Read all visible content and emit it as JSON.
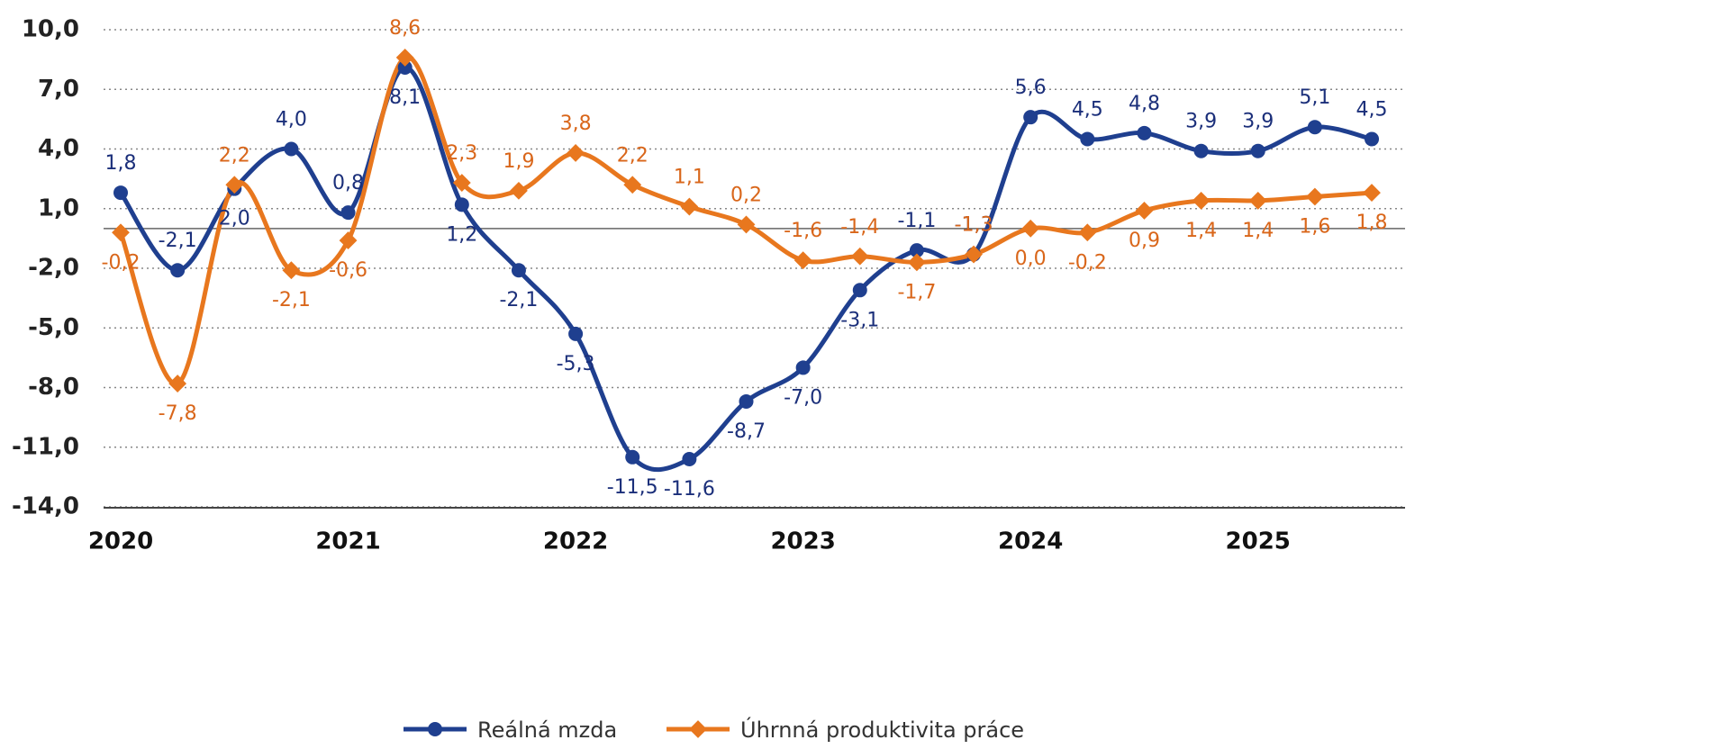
{
  "chart_data": {
    "type": "line",
    "categories": [
      "2020",
      null,
      null,
      null,
      "2021",
      null,
      null,
      null,
      "2022",
      null,
      null,
      null,
      "2023",
      null,
      null,
      null,
      "2024",
      null,
      null,
      null,
      "2025",
      null,
      null
    ],
    "series": [
      {
        "name": "Reálná mzda",
        "color": "#1f3f8f",
        "values": [
          1.8,
          -2.1,
          2.0,
          4.0,
          0.8,
          8.1,
          1.2,
          -2.1,
          -5.3,
          -11.5,
          -11.6,
          -8.7,
          -7.0,
          -3.1,
          -1.1,
          -1.3,
          5.6,
          4.5,
          4.8,
          3.9,
          3.9,
          5.1,
          4.5
        ],
        "value_labels": [
          "1,8",
          "-2,1",
          "2,0",
          "4,0",
          "0,8",
          "8,1",
          "1,2",
          "-2,1",
          "-5,3",
          "-11,5",
          "-11,6",
          "-8,7",
          "-7,0",
          "-3,1",
          "-1,1",
          "-1,3",
          "5,6",
          "4,5",
          "4,8",
          "3,9",
          "3,9",
          "5,1",
          "4,5"
        ]
      },
      {
        "name": "Úhrnná produktivita práce",
        "color": "#e8771e",
        "values": [
          -0.2,
          -7.8,
          2.2,
          -2.1,
          -0.6,
          8.6,
          2.3,
          1.9,
          3.8,
          2.2,
          1.1,
          0.2,
          -1.6,
          -1.4,
          -1.7,
          -1.3,
          0.0,
          -0.2,
          0.9,
          1.4,
          1.4,
          1.6,
          1.8
        ],
        "value_labels": [
          "-0,2",
          "-7,8",
          "2,2",
          "-2,1",
          "-0,6",
          "8,6",
          "2,3",
          "1,9",
          "3,8",
          "2,2",
          "1,1",
          "0,2",
          "-1,6",
          "-1,4",
          "-1,7",
          "-1,3",
          "0,0",
          "-0,2",
          "0,9",
          "1,4",
          "1,4",
          "1,6",
          "1,8"
        ]
      }
    ],
    "ylim": [
      -14,
      10
    ],
    "yticks": [
      {
        "value": -14,
        "label": "-14,0"
      },
      {
        "value": -11,
        "label": "-11,0"
      },
      {
        "value": -8,
        "label": "-8,0"
      },
      {
        "value": -5,
        "label": "-5,0"
      },
      {
        "value": -2,
        "label": "-2,0"
      },
      {
        "value": 1,
        "label": "1,0"
      },
      {
        "value": 4,
        "label": "4,0"
      },
      {
        "value": 7,
        "label": "7,0"
      },
      {
        "value": 10,
        "label": "10,0"
      }
    ],
    "grid": true,
    "legend": "bottom"
  }
}
